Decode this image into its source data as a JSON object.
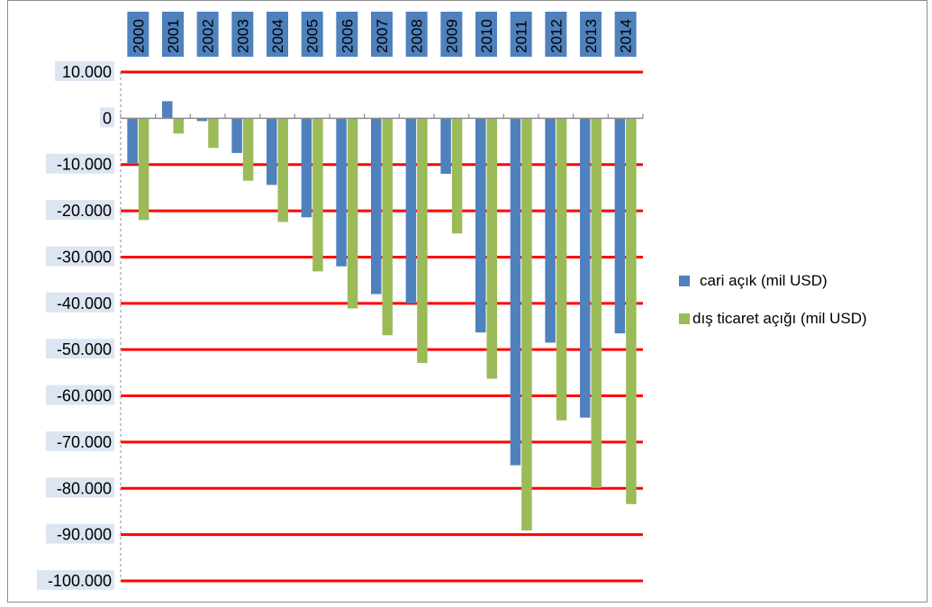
{
  "chart_data": {
    "type": "bar",
    "categories": [
      "2000",
      "2001",
      "2002",
      "2003",
      "2004",
      "2005",
      "2006",
      "2007",
      "2008",
      "2009",
      "2010",
      "2011",
      "2012",
      "2013",
      "2014"
    ],
    "series": [
      {
        "name": "cari açık (mil USD)",
        "color": "#4f81bd",
        "values": [
          -9900,
          3700,
          -600,
          -7500,
          -14400,
          -21400,
          -32000,
          -38000,
          -40000,
          -12000,
          -46300,
          -75000,
          -48500,
          -64700,
          -46500
        ]
      },
      {
        "name": "dış ticaret açığı (mil USD)",
        "color": "#9bbb59",
        "values": [
          -22000,
          -3300,
          -6400,
          -13500,
          -22400,
          -33100,
          -41100,
          -46900,
          -52900,
          -24900,
          -56300,
          -89100,
          -65300,
          -79900,
          -83400
        ]
      }
    ],
    "yticks": [
      10000,
      0,
      -10000,
      -20000,
      -30000,
      -40000,
      -50000,
      -60000,
      -70000,
      -80000,
      -90000,
      -100000
    ],
    "ytick_labels": [
      "10.000",
      "0",
      "-10.000",
      "-20.000",
      "-30.000",
      "-40.000",
      "-50.000",
      "-60.000",
      "-70.000",
      "-80.000",
      "-90.000",
      "-100.000"
    ],
    "ylim": [
      -100000,
      10000
    ],
    "gridline_color": "#ff0000",
    "category_label_bg": "#4f81bd",
    "ytick_label_bg": "#dce6f2",
    "legend_position": "right"
  }
}
